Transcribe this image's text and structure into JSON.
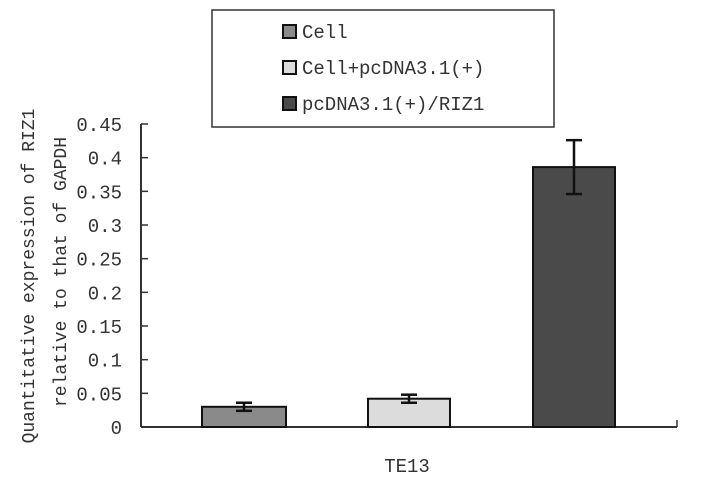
{
  "chart_data": {
    "type": "bar",
    "title": "",
    "xlabel": "",
    "ylabel": "Quantitative expression of RIZ1 relative to that of GAPDH",
    "ylabel_lines": [
      "Quantitative expression of RIZ1",
      "relative to that of GAPDH"
    ],
    "categories": [
      "TE13"
    ],
    "series": [
      {
        "name": "Cell",
        "values": [
          0.03
        ],
        "error": [
          0.006
        ],
        "color": "#8a8a8a"
      },
      {
        "name": "Cell+pcDNA3.1(+)",
        "values": [
          0.042
        ],
        "error": [
          0.006
        ],
        "color": "#dcdcdc"
      },
      {
        "name": "pcDNA3.1(+)/RIZ1",
        "values": [
          0.386
        ],
        "error": [
          0.04
        ],
        "color": "#4a4a4a"
      }
    ],
    "ylim": [
      0,
      0.45
    ],
    "yticks": [
      0,
      0.05,
      0.1,
      0.15,
      0.2,
      0.25,
      0.3,
      0.35,
      0.4,
      0.45
    ],
    "ytick_labels": [
      "0",
      "0.05",
      "0.1",
      "0.15",
      "0.2",
      "0.25",
      "0.3",
      "0.35",
      "0.4",
      "0.45"
    ],
    "grid": false,
    "legend_position": "top-center",
    "error_bars": true
  },
  "legend": {
    "items": [
      {
        "label": "Cell",
        "color": "#8a8a8a"
      },
      {
        "label": "Cell+pcDNA3.1(+)",
        "color": "#dcdcdc"
      },
      {
        "label": "pcDNA3.1(+)/RIZ1",
        "color": "#4a4a4a"
      }
    ]
  },
  "axis": {
    "y_label_line1": "Quantitative expression of RIZ1",
    "y_label_line2": "relative to that of GAPDH",
    "x_category": "TE13"
  }
}
